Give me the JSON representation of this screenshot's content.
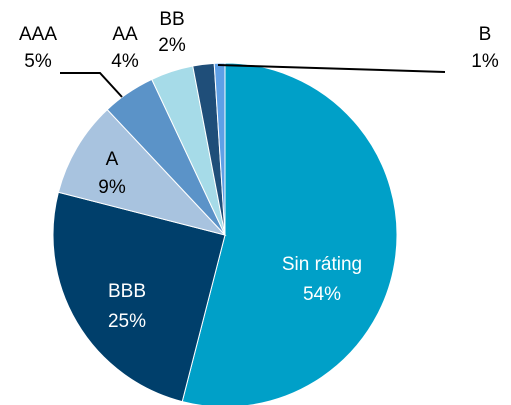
{
  "chart_data": {
    "type": "pie",
    "categories": [
      "Sin ráting",
      "BBB",
      "A",
      "AAA",
      "AA",
      "BB",
      "B"
    ],
    "values": [
      54,
      25,
      9,
      5,
      4,
      2,
      1
    ],
    "value_labels": [
      "54%",
      "25%",
      "9%",
      "5%",
      "4%",
      "2%",
      "1%"
    ],
    "colors": [
      "#00a0c8",
      "#003f6b",
      "#a8c3df",
      "#5b93c8",
      "#a6dbe8",
      "#1f4e79",
      "#5fa0e6"
    ]
  }
}
